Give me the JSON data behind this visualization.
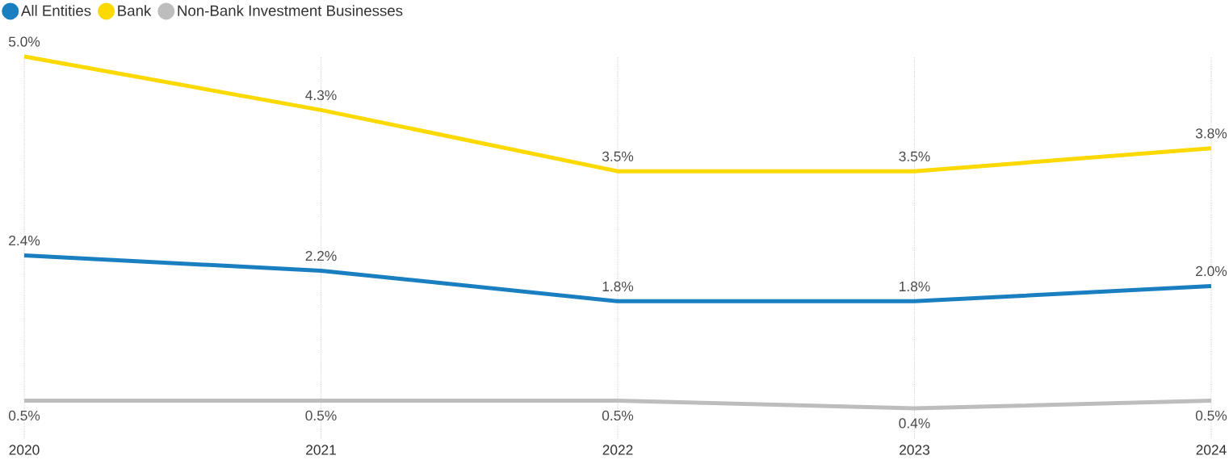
{
  "chart_data": {
    "type": "line",
    "categories": [
      "2020",
      "2021",
      "2022",
      "2023",
      "2024"
    ],
    "series": [
      {
        "name": "All Entities",
        "color": "#1a7fc0",
        "values": [
          2.4,
          2.2,
          1.8,
          1.8,
          2.0
        ],
        "value_labels": [
          "2.4%",
          "2.2%",
          "1.8%",
          "1.8%",
          "2.0%"
        ]
      },
      {
        "name": "Bank",
        "color": "#fcd900",
        "values": [
          5.0,
          4.3,
          3.5,
          3.5,
          3.8
        ],
        "value_labels": [
          "5.0%",
          "4.3%",
          "3.5%",
          "3.5%",
          "3.8%"
        ]
      },
      {
        "name": "Non-Bank Investment Businesses",
        "color": "#bdbdbd",
        "values": [
          0.5,
          0.5,
          0.5,
          0.4,
          0.5
        ],
        "value_labels": [
          "0.5%",
          "0.5%",
          "0.5%",
          "0.4%",
          "0.5%"
        ]
      }
    ],
    "grid": "x",
    "legend": "top left",
    "marker": "none",
    "line_style": "solid"
  }
}
